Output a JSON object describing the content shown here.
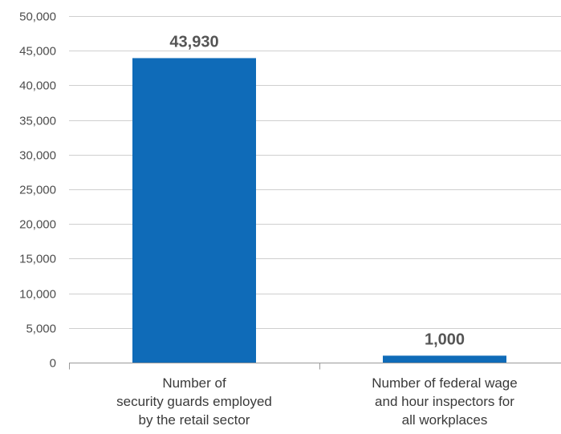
{
  "chart_data": {
    "type": "bar",
    "categories": [
      [
        "Number of",
        "security guards employed",
        "by the retail sector"
      ],
      [
        "Number of federal wage",
        "and hour inspectors for",
        "all workplaces"
      ]
    ],
    "values": [
      43930,
      1000
    ],
    "data_labels": [
      "43,930",
      "1,000"
    ],
    "ylim": [
      0,
      50000
    ],
    "yticks": [
      0,
      5000,
      10000,
      15000,
      20000,
      25000,
      30000,
      35000,
      40000,
      45000,
      50000
    ],
    "ytick_labels": [
      "0",
      "5,000",
      "10,000",
      "15,000",
      "20,000",
      "25,000",
      "30,000",
      "35,000",
      "40,000",
      "45,000",
      "50,000"
    ],
    "grid": true,
    "bar_color": "#0f6bb8"
  }
}
